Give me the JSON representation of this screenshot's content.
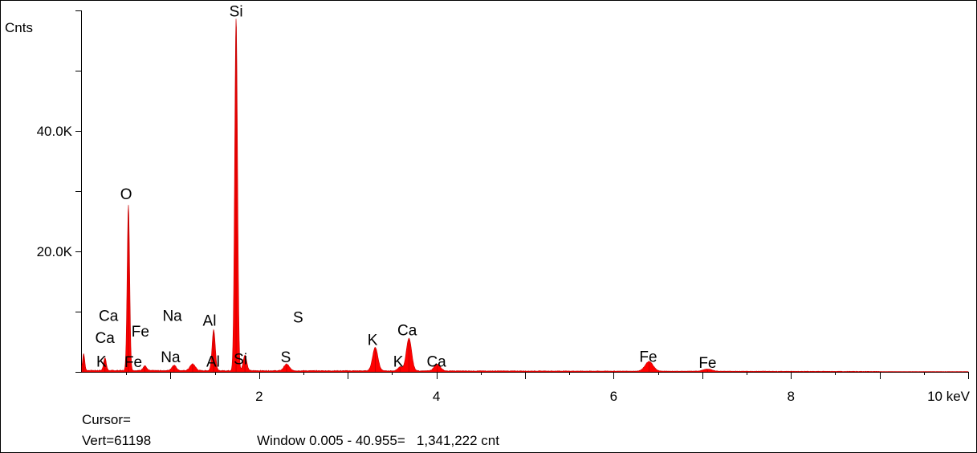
{
  "chart_data": {
    "type": "area",
    "ylabel": "Cnts",
    "xlim": [
      0,
      10
    ],
    "ylim": [
      0,
      60000
    ],
    "grid": false,
    "y_tick_labels": [
      {
        "v": 20000,
        "label": "20.0K"
      },
      {
        "v": 40000,
        "label": "40.0K"
      }
    ],
    "x_tick_labels": [
      {
        "v": 2,
        "label": "2"
      },
      {
        "v": 4,
        "label": "4"
      },
      {
        "v": 6,
        "label": "6"
      },
      {
        "v": 8,
        "label": "8"
      },
      {
        "v": 10,
        "label": "10 keV"
      }
    ],
    "background_counts": 150,
    "peaks": [
      {
        "x": 0.02,
        "h": 2800,
        "w": 0.012
      },
      {
        "x": 0.26,
        "h": 2100,
        "w": 0.015
      },
      {
        "x": 0.525,
        "h": 27500,
        "w": 0.014
      },
      {
        "x": 0.71,
        "h": 800,
        "w": 0.02
      },
      {
        "x": 1.04,
        "h": 900,
        "w": 0.025
      },
      {
        "x": 1.25,
        "h": 1100,
        "w": 0.03
      },
      {
        "x": 1.487,
        "h": 6800,
        "w": 0.018
      },
      {
        "x": 1.74,
        "h": 58500,
        "w": 0.016
      },
      {
        "x": 1.84,
        "h": 2600,
        "w": 0.02
      },
      {
        "x": 2.31,
        "h": 1100,
        "w": 0.03
      },
      {
        "x": 3.31,
        "h": 3900,
        "w": 0.03
      },
      {
        "x": 3.59,
        "h": 650,
        "w": 0.025
      },
      {
        "x": 3.69,
        "h": 5400,
        "w": 0.03
      },
      {
        "x": 4.01,
        "h": 1100,
        "w": 0.035
      },
      {
        "x": 6.4,
        "h": 1600,
        "w": 0.045
      },
      {
        "x": 7.06,
        "h": 350,
        "w": 0.05
      }
    ],
    "annotations": [
      {
        "label": "Si",
        "x": 1.74,
        "y": 59800
      },
      {
        "label": "O",
        "x": 0.5,
        "y": 29500
      },
      {
        "label": "Ca",
        "x": 0.3,
        "y": 9300
      },
      {
        "label": "Ca",
        "x": 0.26,
        "y": 5600
      },
      {
        "label": "K",
        "x": 0.22,
        "y": 1700
      },
      {
        "label": "Fe",
        "x": 0.66,
        "y": 6700
      },
      {
        "label": "Fe",
        "x": 0.58,
        "y": 1600
      },
      {
        "label": "Na",
        "x": 1.02,
        "y": 9300
      },
      {
        "label": "Na",
        "x": 1.0,
        "y": 2400
      },
      {
        "label": "Al",
        "x": 1.44,
        "y": 8500
      },
      {
        "label": "Al",
        "x": 1.48,
        "y": 1700
      },
      {
        "label": "Si",
        "x": 1.79,
        "y": 2100
      },
      {
        "label": "S",
        "x": 2.44,
        "y": 9000
      },
      {
        "label": "S",
        "x": 2.3,
        "y": 2400
      },
      {
        "label": "K",
        "x": 3.28,
        "y": 5300
      },
      {
        "label": "K",
        "x": 3.57,
        "y": 1700
      },
      {
        "label": "Ca",
        "x": 3.67,
        "y": 6900
      },
      {
        "label": "Ca",
        "x": 4.0,
        "y": 1700
      },
      {
        "label": "Fe",
        "x": 6.39,
        "y": 2500
      },
      {
        "label": "Fe",
        "x": 7.06,
        "y": 1500
      }
    ]
  },
  "footer": {
    "cursor": "Cursor=",
    "vert": "Vert=61198",
    "window": "Window 0.005 - 40.955=   1,341,222 cnt"
  },
  "colors": {
    "spectrum": "#ff0000",
    "spectrum_dark": "#c80000",
    "axis": "#000000"
  }
}
